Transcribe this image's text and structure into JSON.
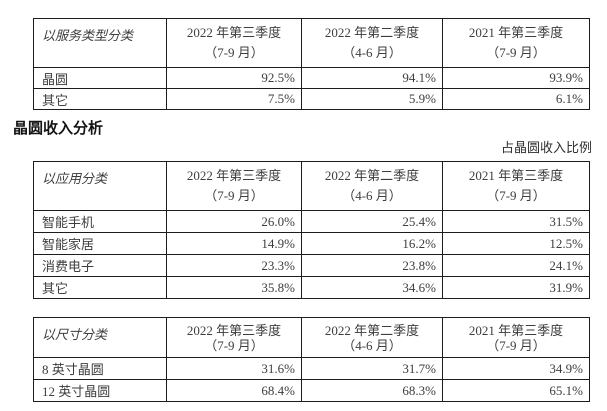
{
  "heading": {
    "text": "晶圆收入分析"
  },
  "note": {
    "text": "占晶圆收入比例"
  },
  "tables": {
    "service": {
      "category_label": "以服务类型分类",
      "columns": [
        {
          "line1": "2022 年第三季度",
          "line2": "（7-9 月）"
        },
        {
          "line1": "2022 年第二季度",
          "line2": "（4-6 月）"
        },
        {
          "line1": "2021 年第三季度",
          "line2": "（7-9 月）"
        }
      ],
      "rows": [
        {
          "label": "晶圆",
          "values": [
            "92.5%",
            "94.1%",
            "93.9%"
          ]
        },
        {
          "label": "其它",
          "values": [
            "7.5%",
            "5.9%",
            "6.1%"
          ]
        }
      ]
    },
    "application": {
      "category_label": "以应用分类",
      "columns": [
        {
          "line1": "2022 年第三季度",
          "line2": "（7-9 月）"
        },
        {
          "line1": "2022 年第二季度",
          "line2": "（4-6 月）"
        },
        {
          "line1": "2021 年第三季度",
          "line2": "（7-9 月）"
        }
      ],
      "rows": [
        {
          "label": "智能手机",
          "values": [
            "26.0%",
            "25.4%",
            "31.5%"
          ]
        },
        {
          "label": "智能家居",
          "values": [
            "14.9%",
            "16.2%",
            "12.5%"
          ]
        },
        {
          "label": "消费电子",
          "values": [
            "23.3%",
            "23.8%",
            "24.1%"
          ]
        },
        {
          "label": "其它",
          "values": [
            "35.8%",
            "34.6%",
            "31.9%"
          ]
        }
      ]
    },
    "size": {
      "category_label": "以尺寸分类",
      "columns": [
        {
          "line1": "2022 年第三季度",
          "line2": "（7-9 月）"
        },
        {
          "line1": "2022 年第二季度",
          "line2": "（4-6 月）"
        },
        {
          "line1": "2021 年第三季度",
          "line2": "（7-9 月）"
        }
      ],
      "rows": [
        {
          "label": "8 英寸晶圆",
          "values": [
            "31.6%",
            "31.7%",
            "34.9%"
          ]
        },
        {
          "label": "12 英寸晶圆",
          "values": [
            "68.4%",
            "68.3%",
            "65.1%"
          ]
        }
      ]
    }
  }
}
